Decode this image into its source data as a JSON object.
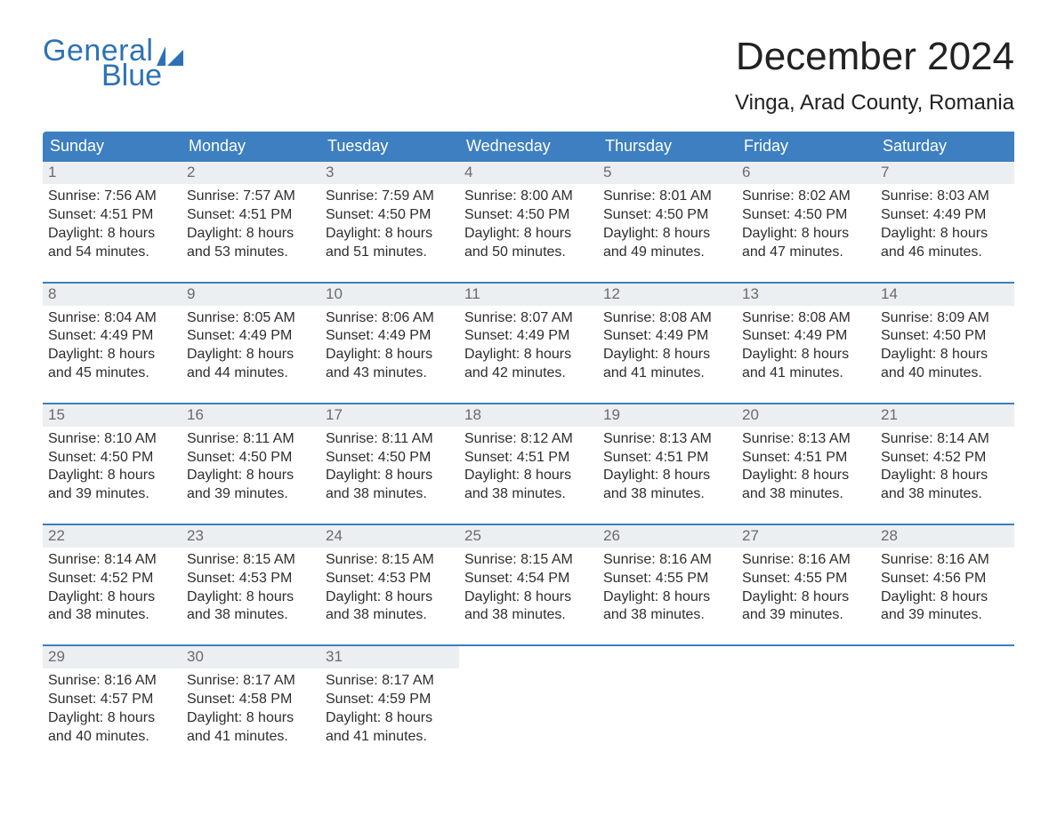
{
  "brand": {
    "word1": "General",
    "word2": "Blue",
    "brand_color": "#2d72b5"
  },
  "title": {
    "month": "December 2024",
    "location": "Vinga, Arad County, Romania"
  },
  "colors": {
    "header_row_bg": "#3d7fc0",
    "daynum_bg": "#eceff1",
    "rule_blue": "#3d7fc0",
    "text_dark": "#2e2e2e",
    "text_gray": "#6a6a6a",
    "page_bg": "#ffffff"
  },
  "days_of_week": [
    "Sunday",
    "Monday",
    "Tuesday",
    "Wednesday",
    "Thursday",
    "Friday",
    "Saturday"
  ],
  "labels": {
    "sunrise": "Sunrise:",
    "sunset": "Sunset:",
    "daylight": "Daylight:"
  },
  "weeks": [
    [
      {
        "n": 1,
        "sunrise": "7:56 AM",
        "sunset": "4:51 PM",
        "dl": "8 hours and 54 minutes."
      },
      {
        "n": 2,
        "sunrise": "7:57 AM",
        "sunset": "4:51 PM",
        "dl": "8 hours and 53 minutes."
      },
      {
        "n": 3,
        "sunrise": "7:59 AM",
        "sunset": "4:50 PM",
        "dl": "8 hours and 51 minutes."
      },
      {
        "n": 4,
        "sunrise": "8:00 AM",
        "sunset": "4:50 PM",
        "dl": "8 hours and 50 minutes."
      },
      {
        "n": 5,
        "sunrise": "8:01 AM",
        "sunset": "4:50 PM",
        "dl": "8 hours and 49 minutes."
      },
      {
        "n": 6,
        "sunrise": "8:02 AM",
        "sunset": "4:50 PM",
        "dl": "8 hours and 47 minutes."
      },
      {
        "n": 7,
        "sunrise": "8:03 AM",
        "sunset": "4:49 PM",
        "dl": "8 hours and 46 minutes."
      }
    ],
    [
      {
        "n": 8,
        "sunrise": "8:04 AM",
        "sunset": "4:49 PM",
        "dl": "8 hours and 45 minutes."
      },
      {
        "n": 9,
        "sunrise": "8:05 AM",
        "sunset": "4:49 PM",
        "dl": "8 hours and 44 minutes."
      },
      {
        "n": 10,
        "sunrise": "8:06 AM",
        "sunset": "4:49 PM",
        "dl": "8 hours and 43 minutes."
      },
      {
        "n": 11,
        "sunrise": "8:07 AM",
        "sunset": "4:49 PM",
        "dl": "8 hours and 42 minutes."
      },
      {
        "n": 12,
        "sunrise": "8:08 AM",
        "sunset": "4:49 PM",
        "dl": "8 hours and 41 minutes."
      },
      {
        "n": 13,
        "sunrise": "8:08 AM",
        "sunset": "4:49 PM",
        "dl": "8 hours and 41 minutes."
      },
      {
        "n": 14,
        "sunrise": "8:09 AM",
        "sunset": "4:50 PM",
        "dl": "8 hours and 40 minutes."
      }
    ],
    [
      {
        "n": 15,
        "sunrise": "8:10 AM",
        "sunset": "4:50 PM",
        "dl": "8 hours and 39 minutes."
      },
      {
        "n": 16,
        "sunrise": "8:11 AM",
        "sunset": "4:50 PM",
        "dl": "8 hours and 39 minutes."
      },
      {
        "n": 17,
        "sunrise": "8:11 AM",
        "sunset": "4:50 PM",
        "dl": "8 hours and 38 minutes."
      },
      {
        "n": 18,
        "sunrise": "8:12 AM",
        "sunset": "4:51 PM",
        "dl": "8 hours and 38 minutes."
      },
      {
        "n": 19,
        "sunrise": "8:13 AM",
        "sunset": "4:51 PM",
        "dl": "8 hours and 38 minutes."
      },
      {
        "n": 20,
        "sunrise": "8:13 AM",
        "sunset": "4:51 PM",
        "dl": "8 hours and 38 minutes."
      },
      {
        "n": 21,
        "sunrise": "8:14 AM",
        "sunset": "4:52 PM",
        "dl": "8 hours and 38 minutes."
      }
    ],
    [
      {
        "n": 22,
        "sunrise": "8:14 AM",
        "sunset": "4:52 PM",
        "dl": "8 hours and 38 minutes."
      },
      {
        "n": 23,
        "sunrise": "8:15 AM",
        "sunset": "4:53 PM",
        "dl": "8 hours and 38 minutes."
      },
      {
        "n": 24,
        "sunrise": "8:15 AM",
        "sunset": "4:53 PM",
        "dl": "8 hours and 38 minutes."
      },
      {
        "n": 25,
        "sunrise": "8:15 AM",
        "sunset": "4:54 PM",
        "dl": "8 hours and 38 minutes."
      },
      {
        "n": 26,
        "sunrise": "8:16 AM",
        "sunset": "4:55 PM",
        "dl": "8 hours and 38 minutes."
      },
      {
        "n": 27,
        "sunrise": "8:16 AM",
        "sunset": "4:55 PM",
        "dl": "8 hours and 39 minutes."
      },
      {
        "n": 28,
        "sunrise": "8:16 AM",
        "sunset": "4:56 PM",
        "dl": "8 hours and 39 minutes."
      }
    ],
    [
      {
        "n": 29,
        "sunrise": "8:16 AM",
        "sunset": "4:57 PM",
        "dl": "8 hours and 40 minutes."
      },
      {
        "n": 30,
        "sunrise": "8:17 AM",
        "sunset": "4:58 PM",
        "dl": "8 hours and 41 minutes."
      },
      {
        "n": 31,
        "sunrise": "8:17 AM",
        "sunset": "4:59 PM",
        "dl": "8 hours and 41 minutes."
      },
      null,
      null,
      null,
      null
    ]
  ]
}
